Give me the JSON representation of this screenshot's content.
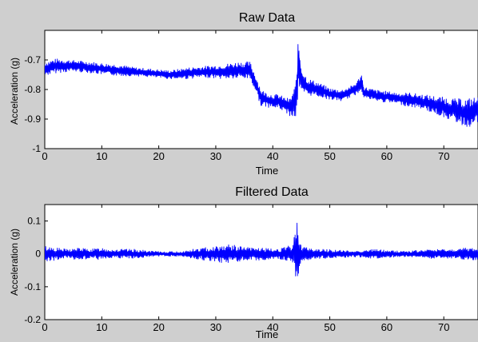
{
  "chart_data": [
    {
      "type": "line",
      "title": "Raw Data",
      "xlabel": "Time",
      "ylabel": "Acceleration (g)",
      "xlim": [
        0,
        76
      ],
      "ylim": [
        -1,
        -0.6
      ],
      "xticks": [
        0,
        10,
        20,
        30,
        40,
        50,
        60,
        70
      ],
      "yticks": [
        -1,
        -0.9,
        -0.8,
        -0.7
      ],
      "ytick_labels": [
        "-1",
        "-0.9",
        "-0.8",
        "-0.7"
      ],
      "grid": false,
      "color": "#0000ff",
      "series": [
        {
          "x": [
            0,
            2,
            5,
            8,
            10,
            13,
            16,
            19,
            22,
            25,
            28,
            31,
            34,
            36,
            37,
            38,
            39,
            40,
            41,
            42,
            43,
            44,
            44.5,
            45,
            46,
            48,
            50,
            52,
            54,
            55,
            55.5,
            56,
            58,
            60,
            62,
            64,
            66,
            68,
            70,
            72,
            74,
            75,
            76
          ],
          "y": [
            -0.73,
            -0.72,
            -0.72,
            -0.725,
            -0.73,
            -0.735,
            -0.74,
            -0.745,
            -0.75,
            -0.745,
            -0.74,
            -0.74,
            -0.735,
            -0.735,
            -0.78,
            -0.83,
            -0.835,
            -0.84,
            -0.84,
            -0.85,
            -0.86,
            -0.84,
            -0.72,
            -0.77,
            -0.79,
            -0.8,
            -0.815,
            -0.82,
            -0.805,
            -0.79,
            -0.77,
            -0.81,
            -0.82,
            -0.825,
            -0.83,
            -0.835,
            -0.84,
            -0.85,
            -0.86,
            -0.87,
            -0.88,
            -0.875,
            -0.87
          ],
          "band": [
            0.025,
            0.025,
            0.02,
            0.02,
            0.02,
            0.02,
            0.015,
            0.015,
            0.015,
            0.02,
            0.02,
            0.025,
            0.03,
            0.03,
            0.03,
            0.03,
            0.025,
            0.025,
            0.025,
            0.025,
            0.03,
            0.06,
            0.1,
            0.05,
            0.03,
            0.025,
            0.02,
            0.02,
            0.02,
            0.025,
            0.03,
            0.02,
            0.02,
            0.02,
            0.02,
            0.025,
            0.025,
            0.03,
            0.035,
            0.04,
            0.05,
            0.05,
            0.045
          ]
        }
      ]
    },
    {
      "type": "line",
      "title": "Filtered Data",
      "xlabel": "Time",
      "ylabel": "Acceleration (g)",
      "xlim": [
        0,
        76
      ],
      "ylim": [
        -0.2,
        0.15
      ],
      "xticks": [
        0,
        10,
        20,
        30,
        40,
        50,
        60,
        70
      ],
      "yticks": [
        -0.2,
        -0.1,
        0,
        0.1
      ],
      "ytick_labels": [
        "-0.2",
        "-0.1",
        "0",
        "0.1"
      ],
      "grid": false,
      "color": "#0000ff",
      "series": [
        {
          "x": [
            0,
            2,
            4,
            6,
            8,
            10,
            12,
            14,
            16,
            18,
            20,
            22,
            24,
            26,
            28,
            30,
            32,
            34,
            36,
            38,
            40,
            42,
            43.5,
            44.3,
            45,
            46,
            48,
            50,
            52,
            54,
            56,
            58,
            60,
            62,
            64,
            66,
            68,
            70,
            72,
            74,
            76
          ],
          "y": [
            0,
            0,
            0,
            0,
            0,
            0,
            0,
            0,
            0,
            0,
            0,
            0,
            0,
            0,
            0,
            0,
            0,
            0,
            0,
            0,
            0,
            0,
            0,
            0,
            0,
            0,
            0,
            0,
            0,
            0,
            0,
            0,
            0,
            0,
            0,
            0,
            0,
            0,
            0,
            0,
            0
          ],
          "band": [
            0.025,
            0.02,
            0.015,
            0.02,
            0.015,
            0.02,
            0.015,
            0.015,
            0.015,
            0.01,
            0.008,
            0.008,
            0.008,
            0.015,
            0.02,
            0.025,
            0.03,
            0.025,
            0.02,
            0.02,
            0.015,
            0.02,
            0.03,
            0.11,
            0.03,
            0.02,
            0.015,
            0.015,
            0.012,
            0.01,
            0.012,
            0.015,
            0.012,
            0.01,
            0.01,
            0.012,
            0.015,
            0.015,
            0.015,
            0.02,
            0.02
          ]
        }
      ]
    }
  ]
}
